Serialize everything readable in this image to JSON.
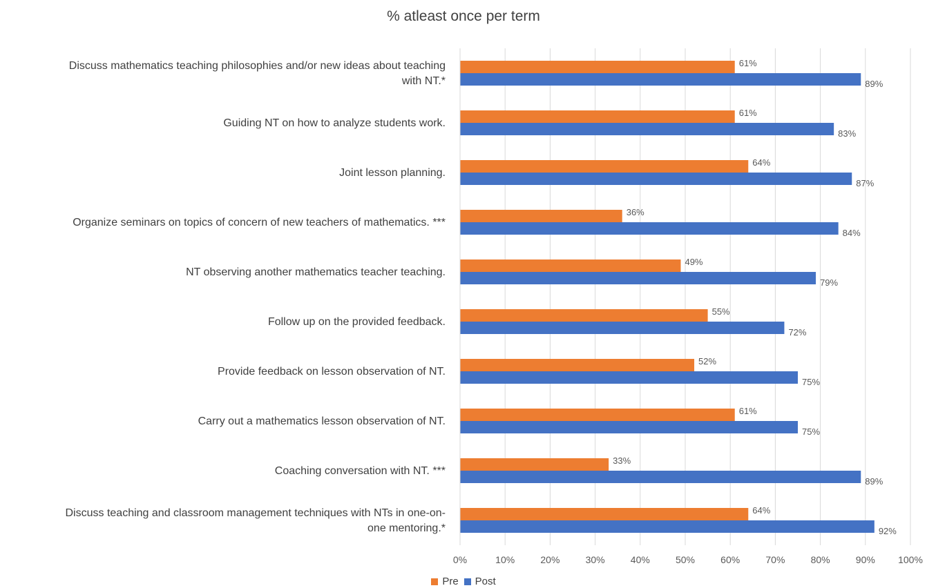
{
  "chart_data": {
    "type": "bar",
    "orientation": "horizontal",
    "title": "% atleast once per term",
    "categories": [
      "Discuss mathematics teaching philosophies and/or new ideas about teaching with NT.*",
      "Guiding NT on how to analyze students work.",
      "Joint lesson planning.",
      "Organize seminars on topics of concern of new teachers of mathematics. ***",
      "NT observing another mathematics teacher teaching.",
      "Follow up on the provided feedback.",
      "Provide feedback on lesson observation of NT.",
      "Carry out a mathematics lesson observation of NT.",
      "Coaching conversation with NT. ***",
      "Discuss teaching and classroom management techniques with NTs in one-on-one mentoring.*"
    ],
    "category_lines": [
      [
        "Discuss mathematics teaching philosophies and/or new ideas about teaching",
        "with NT.*"
      ],
      [
        "Guiding NT on how to analyze students work."
      ],
      [
        "Joint lesson planning."
      ],
      [
        "Organize seminars on topics of concern of new teachers of mathematics. ***"
      ],
      [
        "NT observing another mathematics teacher teaching."
      ],
      [
        "Follow up on the provided feedback."
      ],
      [
        "Provide feedback on lesson observation of NT."
      ],
      [
        "Carry out a mathematics lesson observation of NT."
      ],
      [
        "Coaching conversation with NT. ***"
      ],
      [
        "Discuss teaching and classroom management techniques with NTs in one-on-",
        "one mentoring.*"
      ]
    ],
    "series": [
      {
        "name": "Pre",
        "color": "#ED7D31",
        "values": [
          61,
          61,
          64,
          36,
          49,
          55,
          52,
          61,
          33,
          64
        ],
        "labels": [
          "61%",
          "61%",
          "64%",
          "36%",
          "49%",
          "55%",
          "52%",
          "61%",
          "33%",
          "64%"
        ]
      },
      {
        "name": "Post",
        "color": "#4472C4",
        "values": [
          89,
          83,
          87,
          84,
          79,
          72,
          75,
          75,
          89,
          92
        ],
        "labels": [
          "89%",
          "83%",
          "87%",
          "84%",
          "79%",
          "72%",
          "75%",
          "75%",
          "89%",
          "92%"
        ]
      }
    ],
    "xlim": [
      0,
      100
    ],
    "xticks": [
      "0%",
      "10%",
      "20%",
      "30%",
      "40%",
      "50%",
      "60%",
      "70%",
      "80%",
      "90%",
      "100%"
    ],
    "grid": true,
    "legend_position": "bottom"
  }
}
